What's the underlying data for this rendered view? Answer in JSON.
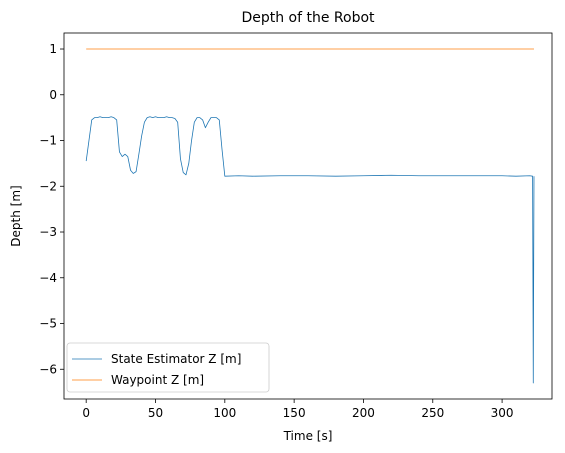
{
  "chart_data": {
    "type": "line",
    "title": "Depth of the Robot",
    "xlabel": "Time [s]",
    "ylabel": "Depth [m]",
    "xlim": [
      -16,
      336
    ],
    "ylim": [
      -6.65,
      1.35
    ],
    "xticks": [
      0,
      50,
      100,
      150,
      200,
      250,
      300
    ],
    "yticks": [
      1,
      0,
      -1,
      -2,
      -3,
      -4,
      -5,
      -6
    ],
    "grid": false,
    "legend_position": "lower-left",
    "series": [
      {
        "name": "State Estimator Z [m]",
        "color": "#1f77b4",
        "x": [
          0,
          2,
          4,
          6,
          8,
          10,
          12,
          14,
          16,
          18,
          20,
          22,
          24,
          26,
          28,
          30,
          32,
          34,
          36,
          38,
          40,
          42,
          44,
          46,
          48,
          50,
          52,
          54,
          56,
          58,
          60,
          62,
          64,
          66,
          68,
          70,
          72,
          74,
          76,
          78,
          80,
          82,
          84,
          86,
          88,
          90,
          92,
          94,
          96,
          98,
          100,
          110,
          120,
          140,
          160,
          180,
          200,
          220,
          240,
          260,
          280,
          300,
          310,
          320,
          322,
          322.5,
          323
        ],
        "y": [
          -1.45,
          -1.0,
          -0.55,
          -0.5,
          -0.5,
          -0.48,
          -0.5,
          -0.5,
          -0.5,
          -0.48,
          -0.5,
          -0.55,
          -1.25,
          -1.35,
          -1.3,
          -1.35,
          -1.65,
          -1.72,
          -1.68,
          -1.3,
          -0.9,
          -0.6,
          -0.5,
          -0.48,
          -0.5,
          -0.48,
          -0.5,
          -0.5,
          -0.5,
          -0.48,
          -0.5,
          -0.5,
          -0.52,
          -0.6,
          -1.4,
          -1.7,
          -1.75,
          -1.5,
          -1.0,
          -0.6,
          -0.5,
          -0.5,
          -0.55,
          -0.72,
          -0.6,
          -0.5,
          -0.5,
          -0.5,
          -0.55,
          -1.2,
          -1.78,
          -1.77,
          -1.78,
          -1.77,
          -1.77,
          -1.78,
          -1.77,
          -1.76,
          -1.77,
          -1.77,
          -1.77,
          -1.77,
          -1.78,
          -1.77,
          -1.78,
          -6.3,
          -1.78
        ]
      },
      {
        "name": "Waypoint Z [m]",
        "color": "#ff7f0e",
        "x": [
          0,
          323
        ],
        "y": [
          1,
          1
        ]
      }
    ]
  }
}
